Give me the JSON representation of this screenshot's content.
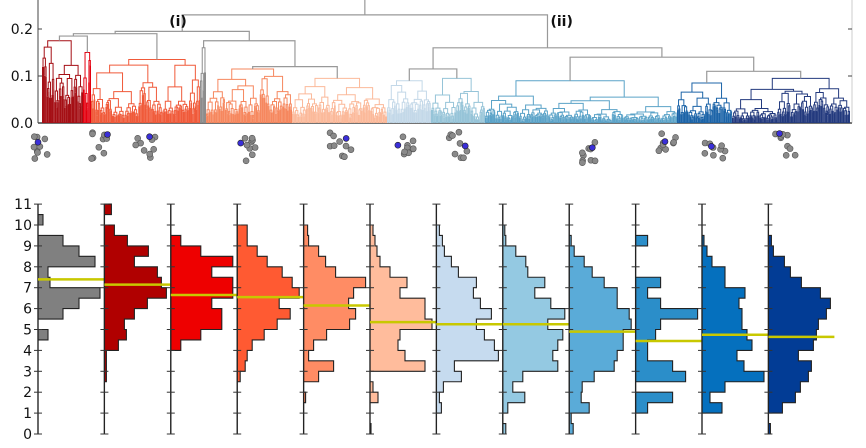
{
  "chart_data": [
    {
      "type": "dendrogram",
      "y_ticks": [
        "0.0",
        "0.1",
        "0.2"
      ],
      "ylim": [
        0,
        0.26
      ],
      "branch_labels": [
        "(i)",
        "(ii)"
      ],
      "link_color": "#999999",
      "clusters": [
        {
          "color": "#a50f15",
          "height": 0.175
        },
        {
          "color": "#e4000f",
          "height": 0.15
        },
        {
          "color": "#f05a3a",
          "height": 0.135
        },
        {
          "color": "#8c8c8c",
          "height": 0.16
        },
        {
          "color": "#f6875e",
          "height": 0.115
        },
        {
          "color": "#fbb99a",
          "height": 0.095
        },
        {
          "color": "#c3d8e8",
          "height": 0.09
        },
        {
          "color": "#96c4d8",
          "height": 0.095
        },
        {
          "color": "#5ba3c8",
          "height": 0.09
        },
        {
          "color": "#1c64a8",
          "height": 0.085
        },
        {
          "color": "#233a7e",
          "height": 0.095
        }
      ]
    },
    {
      "type": "histogram-panels",
      "orientation": "horizontal",
      "y_ticks": [
        "0",
        "1",
        "2",
        "3",
        "4",
        "5",
        "6",
        "7",
        "8",
        "9",
        "10",
        "11"
      ],
      "ylim": [
        0,
        11
      ],
      "bin_width": 0.5,
      "mean_line_color": "#c8c800",
      "panels": [
        {
          "color": "#808080",
          "mean": 7.4,
          "bins": {
            "4.5": 10,
            "5.5": 25,
            "6": 41,
            "6.5": 62,
            "7": 12,
            "7.5": 10,
            "8": 57,
            "8.5": 41,
            "9": 25,
            "10": 5
          }
        },
        {
          "color": "#b00000",
          "mean": 7.15,
          "bins": {
            "2.5": 2,
            "3": 2,
            "3.5": 2,
            "4": 14,
            "4.5": 22,
            "5": 20,
            "5.5": 30,
            "6": 43,
            "6.5": 62,
            "7": 57,
            "7.5": 53,
            "8": 30,
            "8.5": 44,
            "9": 23,
            "9.5": 10,
            "10.5": 7
          }
        },
        {
          "color": "#ee0000",
          "mean": 6.65,
          "bins": {
            "4": 10,
            "4.5": 30,
            "5": 51,
            "5.5": 51,
            "6": 41,
            "6.5": 62,
            "7": 62,
            "7.5": 41,
            "8": 62,
            "8.5": 30,
            "9": 10
          }
        },
        {
          "color": "#ff5a32",
          "mean": 6.55,
          "bins": {
            "2.5": 3,
            "3": 8,
            "3.5": 10,
            "4": 15,
            "4.5": 27,
            "5": 40,
            "5.5": 53,
            "6": 42,
            "6.5": 62,
            "7": 55,
            "7.5": 45,
            "8": 30,
            "8.5": 20,
            "9": 10,
            "9.5": 10
          }
        },
        {
          "color": "#ff8c64",
          "mean": 6.15,
          "bins": {
            "1.5": 2,
            "2.5": 15,
            "3": 30,
            "3.5": 5,
            "4": 10,
            "4.5": 23,
            "5": 46,
            "5.5": 52,
            "6": 45,
            "6.5": 50,
            "7": 62,
            "7.5": 32,
            "8": 22,
            "8.5": 15,
            "9": 5,
            "9.5": 4
          }
        },
        {
          "color": "#ffbc9c",
          "mean": 5.35,
          "bins": {
            "0": 1,
            "1.5": 8,
            "2": 3,
            "3": 55,
            "3.5": 35,
            "4": 28,
            "4.5": 30,
            "5": 62,
            "5.5": 55,
            "6": 55,
            "6.5": 30,
            "7": 37,
            "7.5": 20,
            "8": 10,
            "8.5": 7,
            "9": 5,
            "9.5": 3
          }
        },
        {
          "color": "#c6dbef",
          "mean": 5.25,
          "bins": {
            "1": 5,
            "1.5": 3,
            "2": 7,
            "2.5": 25,
            "3": 18,
            "3.5": 62,
            "4": 58,
            "4.5": 48,
            "5": 40,
            "5.5": 55,
            "6": 44,
            "6.5": 37,
            "7": 40,
            "7.5": 22,
            "8": 15,
            "8.5": 8,
            "9": 6,
            "9.5": 3
          }
        },
        {
          "color": "#94c9e2",
          "mean": 5.25,
          "bins": {
            "0": 3,
            "1": 5,
            "1.5": 22,
            "2": 10,
            "2.5": 20,
            "3": 55,
            "3.5": 50,
            "4": 55,
            "4.5": 60,
            "5": 45,
            "5.5": 62,
            "6": 48,
            "6.5": 32,
            "7": 42,
            "7.5": 25,
            "8": 23,
            "8.5": 13,
            "9": 3,
            "9.5": 2
          }
        },
        {
          "color": "#5aabd8",
          "mean": 4.9,
          "bins": {
            "0": 4,
            "0.5": 2,
            "1": 20,
            "1.5": 12,
            "2": 13,
            "2.5": 25,
            "3": 45,
            "3.5": 48,
            "4": 54,
            "4.5": 54,
            "5": 62,
            "5.5": 60,
            "6": 48,
            "6.5": 48,
            "7": 35,
            "7.5": 23,
            "8": 15,
            "8.5": 5,
            "9": 2
          }
        },
        {
          "color": "#2b8ec9",
          "mean": 4.45,
          "bins": {
            "1": 12,
            "1.5": 37,
            "2.5": 50,
            "3": 37,
            "3.5": 12,
            "4": 12,
            "4.5": 20,
            "5": 25,
            "5.5": 62,
            "6": 25,
            "6.5": 12,
            "7": 25,
            "9": 12
          }
        },
        {
          "color": "#0570be",
          "mean": 4.75,
          "bins": {
            "1": 20,
            "1.5": 8,
            "2": 23,
            "2.5": 62,
            "3": 42,
            "3.5": 35,
            "4": 50,
            "4.5": 45,
            "5": 40,
            "5.5": 40,
            "6": 37,
            "6.5": 43,
            "7": 23,
            "7.5": 23,
            "8": 10,
            "8.5": 5,
            "9": 2
          }
        },
        {
          "color": "#023c95",
          "mean": 4.65,
          "bins": {
            "0": 2,
            "1": 14,
            "1.5": 27,
            "2": 32,
            "2.5": 40,
            "3": 43,
            "3.5": 30,
            "4": 45,
            "4.5": 48,
            "5": 50,
            "5.5": 58,
            "6": 62,
            "6.5": 52,
            "7": 33,
            "7.5": 22,
            "8": 16,
            "8.5": 5,
            "9": 3
          }
        }
      ]
    }
  ]
}
